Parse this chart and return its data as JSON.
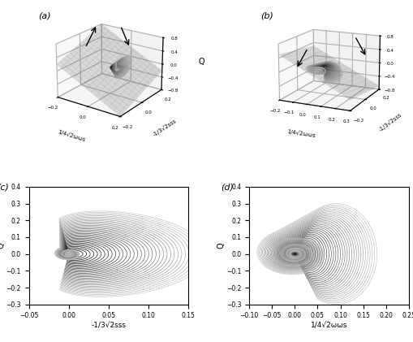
{
  "panel_labels": [
    "(a)",
    "(b)",
    "(c)",
    "(d)"
  ],
  "panel_a": {
    "xlabel": "1/4√2ωωs",
    "ylabel": "-1/3√2sss",
    "zlabel": "Q",
    "zlim": [
      -0.8,
      0.8
    ],
    "xlim": [
      -0.2,
      0.2
    ],
    "ylim": [
      -0.2,
      0.2
    ],
    "xticks": [
      -0.2,
      0,
      0.2
    ],
    "yticks": [
      -0.2,
      0,
      0.2
    ],
    "zticks": [
      -0.8,
      -0.4,
      0,
      0.4,
      0.8
    ]
  },
  "panel_b": {
    "xlabel": "1/4√2ωωs",
    "ylabel": "-1/3√2sss",
    "zlabel": "Q",
    "zlim": [
      -0.8,
      0.8
    ],
    "xlim": [
      -0.2,
      0.3
    ],
    "ylim": [
      -0.2,
      0.2
    ],
    "xticks": [
      -0.2,
      -0.1,
      0,
      0.1,
      0.2,
      0.3
    ],
    "yticks": [
      -0.2,
      0,
      0.2
    ],
    "zticks": [
      -0.8,
      -0.4,
      0,
      0.4,
      0.8
    ]
  },
  "panel_c": {
    "xlabel": "-1/3√2sss",
    "ylabel": "Q",
    "xlim": [
      -0.05,
      0.15
    ],
    "ylim": [
      -0.3,
      0.4
    ],
    "xticks": [
      -0.05,
      0,
      0.05,
      0.1,
      0.15
    ],
    "yticks": [
      -0.3,
      -0.2,
      -0.1,
      0,
      0.1,
      0.2,
      0.3,
      0.4
    ]
  },
  "panel_d": {
    "xlabel": "1/4√2ωωs",
    "ylabel": "Q",
    "xlim": [
      -0.1,
      0.25
    ],
    "ylim": [
      -0.3,
      0.4
    ],
    "xticks": [
      -0.1,
      -0.05,
      0,
      0.05,
      0.1,
      0.15,
      0.2,
      0.25
    ],
    "yticks": [
      -0.3,
      -0.2,
      -0.1,
      0,
      0.1,
      0.2,
      0.3,
      0.4
    ]
  },
  "n_trajectories": 35,
  "background_color": "#ffffff"
}
